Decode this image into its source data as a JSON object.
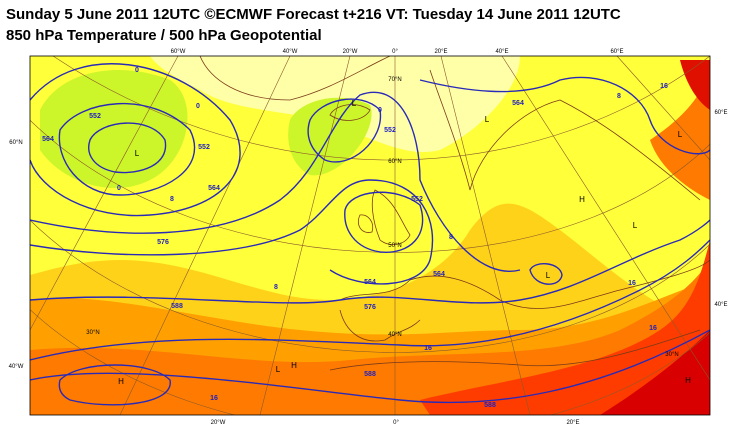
{
  "header": {
    "title_lines": [
      "Sunday 5 June 2011 12UTC ©ECMWF Forecast t+216 VT: Tuesday 14 June 2011 12UTC",
      "850 hPa Temperature / 500 hPa Geopotential"
    ]
  },
  "map": {
    "geo_labels": [
      "60°W",
      "40°W",
      "20°W",
      "0°",
      "20°E",
      "40°E",
      "60°E",
      "20°W",
      "0°",
      "20°E",
      "60°N",
      "40°W",
      "60°E",
      "40°E",
      "70°N",
      "60°N",
      "50°N",
      "40°N",
      "30°N",
      "30°N"
    ],
    "contour_labels": [
      "552",
      "0",
      "0",
      "0",
      "8",
      "564",
      "552",
      "564",
      "576",
      "588",
      "0",
      "552",
      "552",
      "8",
      "564",
      "8",
      "564",
      "576",
      "16",
      "564",
      "8",
      "16",
      "16",
      "16",
      "16",
      "588",
      "588"
    ],
    "centers": [
      "L",
      "L",
      "L",
      "L",
      "H",
      "L",
      "L",
      "H",
      "L",
      "H",
      "H"
    ]
  }
}
